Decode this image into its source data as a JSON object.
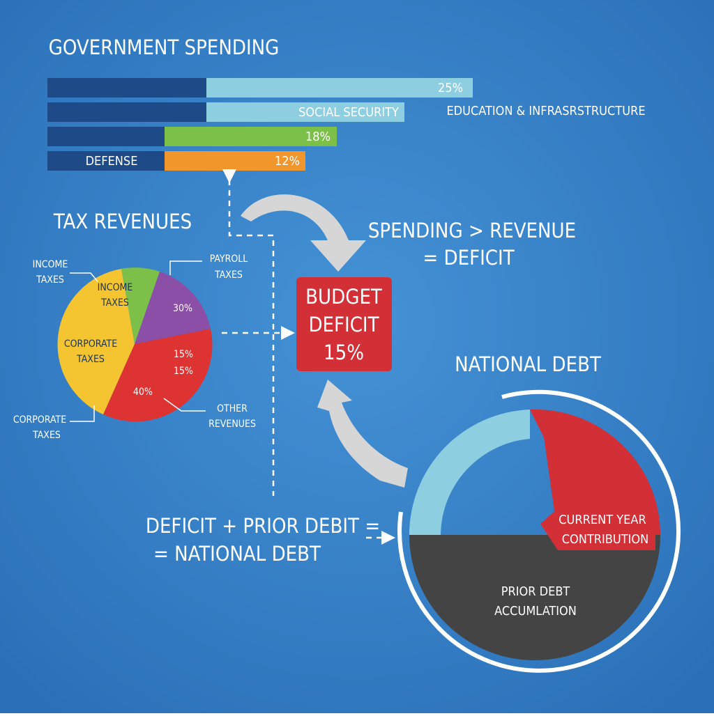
{
  "header": {
    "title": "GOVERNMENT SPENDING"
  },
  "spending_bars": [
    {
      "label": "25%"
    },
    {
      "label": "SOCIAL SECURITY",
      "side_label": "EDUCATION & INFRASRSTRUCTURE"
    },
    {
      "label": "18%"
    },
    {
      "left_label": "DEFENSE",
      "label": "12%"
    }
  ],
  "tax_revenues": {
    "title": "TAX REVENUES",
    "inner_labels": [
      [
        "INCOME",
        "TAXES"
      ],
      [
        "30%"
      ],
      [
        "CORPORATE",
        "TAXES"
      ],
      [
        "15%",
        "15%"
      ],
      [
        "40%"
      ]
    ],
    "callouts": [
      [
        "INCOME",
        "TAXES"
      ],
      [
        "PAYROLL",
        "TAXES"
      ],
      [
        "OTHER",
        "REVENUES"
      ],
      [
        "CORPORATE",
        "TAXES"
      ]
    ]
  },
  "deficit_box": {
    "lines": [
      "BUDGET",
      "DEFICIT",
      "15%"
    ]
  },
  "equation_1": [
    "SPENDING > REVENUE",
    "= DEFICIT"
  ],
  "national_debt": {
    "title": "NATIONAL DEBT",
    "current": [
      "CURRENT YEAR",
      "CONTRIBUTION"
    ],
    "prior": [
      "PRIOR DEBT",
      "ACCUMLATION"
    ]
  },
  "equation_2": [
    "DEFICIT + PRIOR DEBIT =",
    "= NATIONAL DEBT"
  ]
}
